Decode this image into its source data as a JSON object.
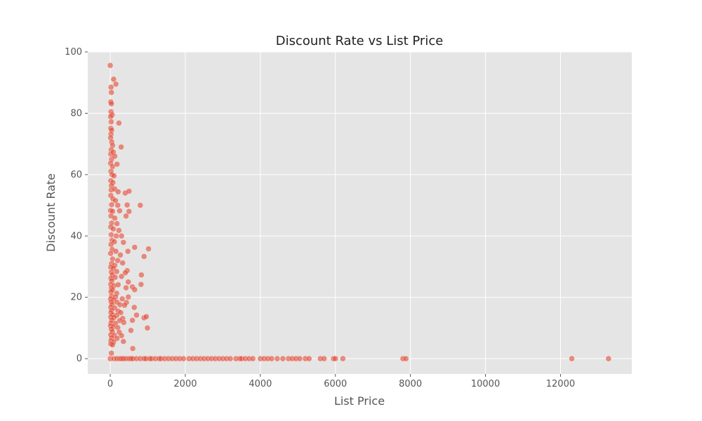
{
  "chart_data": {
    "type": "scatter",
    "title": "Discount Rate vs List Price",
    "xlabel": "List Price",
    "ylabel": "Discount Rate",
    "xlim": [
      -600,
      13900
    ],
    "ylim": [
      -5,
      100
    ],
    "xticks": [
      0,
      2000,
      4000,
      6000,
      8000,
      10000,
      12000
    ],
    "yticks": [
      0,
      20,
      40,
      60,
      80,
      100
    ],
    "grid": true,
    "colors": {
      "background": "#e5e5e5",
      "grid": "#ffffff",
      "point": "#e24a33",
      "point_edge": "#ffffff"
    },
    "series": [
      {
        "points": [
          [
            0,
            95.6
          ],
          [
            20,
            88.5
          ],
          [
            30,
            86.8
          ],
          [
            90,
            91.1
          ],
          [
            150,
            89.5
          ],
          [
            15,
            83.7
          ],
          [
            30,
            83.1
          ],
          [
            20,
            80.5
          ],
          [
            50,
            79.5
          ],
          [
            10,
            78.9
          ],
          [
            25,
            77.2
          ],
          [
            230,
            76.8
          ],
          [
            15,
            75.1
          ],
          [
            35,
            74.5
          ],
          [
            20,
            73.2
          ],
          [
            10,
            72.0
          ],
          [
            40,
            70.6
          ],
          [
            60,
            69.5
          ],
          [
            25,
            68.1
          ],
          [
            290,
            69.0
          ],
          [
            15,
            66.7
          ],
          [
            80,
            67.3
          ],
          [
            35,
            65.0
          ],
          [
            120,
            66.0
          ],
          [
            10,
            63.7
          ],
          [
            60,
            62.6
          ],
          [
            180,
            63.4
          ],
          [
            20,
            61.1
          ],
          [
            45,
            60.0
          ],
          [
            100,
            59.6
          ],
          [
            15,
            58.0
          ],
          [
            70,
            57.4
          ],
          [
            30,
            56.4
          ],
          [
            25,
            55.0
          ],
          [
            120,
            55.3
          ],
          [
            210,
            54.4
          ],
          [
            400,
            54.0
          ],
          [
            500,
            54.6
          ],
          [
            15,
            53.2
          ],
          [
            70,
            52.1
          ],
          [
            140,
            51.5
          ],
          [
            35,
            50.2
          ],
          [
            200,
            50.0
          ],
          [
            450,
            50.1
          ],
          [
            800,
            50.0
          ],
          [
            10,
            48.3
          ],
          [
            60,
            48.0
          ],
          [
            250,
            48.2
          ],
          [
            500,
            48.0
          ],
          [
            20,
            46.5
          ],
          [
            120,
            45.8
          ],
          [
            420,
            46.5
          ],
          [
            35,
            44.2
          ],
          [
            180,
            44.0
          ],
          [
            15,
            42.9
          ],
          [
            80,
            42.3
          ],
          [
            230,
            41.8
          ],
          [
            25,
            40.4
          ],
          [
            160,
            40.0
          ],
          [
            300,
            40.0
          ],
          [
            45,
            38.6
          ],
          [
            110,
            38.1
          ],
          [
            350,
            37.9
          ],
          [
            20,
            37.2
          ],
          [
            650,
            36.3
          ],
          [
            1020,
            35.8
          ],
          [
            50,
            35.6
          ],
          [
            150,
            35.0
          ],
          [
            470,
            35.0
          ],
          [
            10,
            34.3
          ],
          [
            270,
            33.8
          ],
          [
            900,
            33.3
          ],
          [
            60,
            32.5
          ],
          [
            200,
            32.0
          ],
          [
            35,
            31.0
          ],
          [
            120,
            30.4
          ],
          [
            330,
            31.2
          ],
          [
            15,
            29.8
          ],
          [
            80,
            29.5
          ],
          [
            450,
            28.7
          ],
          [
            30,
            28.2
          ],
          [
            170,
            28.4
          ],
          [
            400,
            28.0
          ],
          [
            55,
            27.3
          ],
          [
            830,
            27.3
          ],
          [
            20,
            26.2
          ],
          [
            130,
            26.5
          ],
          [
            300,
            26.8
          ],
          [
            40,
            25.4
          ],
          [
            480,
            25.0
          ],
          [
            15,
            24.2
          ],
          [
            100,
            23.8
          ],
          [
            210,
            24.1
          ],
          [
            590,
            23.4
          ],
          [
            820,
            24.2
          ],
          [
            30,
            23.0
          ],
          [
            420,
            23.1
          ],
          [
            60,
            22.5
          ],
          [
            650,
            22.5
          ],
          [
            20,
            21.8
          ],
          [
            170,
            21.3
          ],
          [
            35,
            20.4
          ],
          [
            140,
            20.1
          ],
          [
            480,
            20.1
          ],
          [
            10,
            19.5
          ],
          [
            90,
            19.2
          ],
          [
            320,
            19.5
          ],
          [
            25,
            18.5
          ],
          [
            180,
            18.4
          ],
          [
            430,
            18.3
          ],
          [
            50,
            17.7
          ],
          [
            260,
            17.6
          ],
          [
            380,
            17.4
          ],
          [
            15,
            16.8
          ],
          [
            120,
            16.5
          ],
          [
            640,
            16.7
          ],
          [
            35,
            15.8
          ],
          [
            210,
            15.5
          ],
          [
            20,
            15.0
          ],
          [
            280,
            15.0
          ],
          [
            60,
            14.3
          ],
          [
            170,
            14.1
          ],
          [
            700,
            14.2
          ],
          [
            15,
            13.6
          ],
          [
            100,
            13.4
          ],
          [
            330,
            13.1
          ],
          [
            900,
            13.3
          ],
          [
            960,
            13.7
          ],
          [
            40,
            12.6
          ],
          [
            250,
            12.4
          ],
          [
            590,
            12.5
          ],
          [
            20,
            11.6
          ],
          [
            140,
            11.5
          ],
          [
            360,
            11.8
          ],
          [
            10,
            10.7
          ],
          [
            80,
            10.4
          ],
          [
            200,
            10.1
          ],
          [
            990,
            10.0
          ],
          [
            30,
            9.6
          ],
          [
            550,
            9.2
          ],
          [
            55,
            8.8
          ],
          [
            240,
            8.6
          ],
          [
            15,
            7.8
          ],
          [
            110,
            7.6
          ],
          [
            300,
            7.5
          ],
          [
            35,
            6.8
          ],
          [
            180,
            6.6
          ],
          [
            20,
            5.8
          ],
          [
            90,
            5.5
          ],
          [
            350,
            5.6
          ],
          [
            15,
            4.8
          ],
          [
            60,
            4.5
          ],
          [
            600,
            3.3
          ],
          [
            30,
            1.8
          ],
          [
            0,
            0
          ],
          [
            100,
            0
          ],
          [
            180,
            0
          ],
          [
            250,
            0
          ],
          [
            300,
            0
          ],
          [
            350,
            0
          ],
          [
            420,
            0
          ],
          [
            500,
            0
          ],
          [
            550,
            0
          ],
          [
            600,
            0
          ],
          [
            700,
            0
          ],
          [
            800,
            0
          ],
          [
            900,
            0
          ],
          [
            950,
            0
          ],
          [
            1050,
            0
          ],
          [
            1100,
            0
          ],
          [
            1200,
            0
          ],
          [
            1300,
            0
          ],
          [
            1350,
            0
          ],
          [
            1450,
            0
          ],
          [
            1550,
            0
          ],
          [
            1650,
            0
          ],
          [
            1750,
            0
          ],
          [
            1850,
            0
          ],
          [
            1950,
            0
          ],
          [
            2100,
            0
          ],
          [
            2200,
            0
          ],
          [
            2300,
            0
          ],
          [
            2400,
            0
          ],
          [
            2500,
            0
          ],
          [
            2600,
            0
          ],
          [
            2700,
            0
          ],
          [
            2800,
            0
          ],
          [
            2900,
            0
          ],
          [
            3000,
            0
          ],
          [
            3100,
            0
          ],
          [
            3200,
            0
          ],
          [
            3350,
            0
          ],
          [
            3450,
            0
          ],
          [
            3500,
            0
          ],
          [
            3600,
            0
          ],
          [
            3700,
            0
          ],
          [
            3800,
            0
          ],
          [
            4000,
            0
          ],
          [
            4100,
            0
          ],
          [
            4200,
            0
          ],
          [
            4300,
            0
          ],
          [
            4450,
            0
          ],
          [
            4600,
            0
          ],
          [
            4750,
            0
          ],
          [
            4850,
            0
          ],
          [
            4950,
            0
          ],
          [
            5050,
            0
          ],
          [
            5200,
            0
          ],
          [
            5300,
            0
          ],
          [
            5600,
            0
          ],
          [
            5700,
            0
          ],
          [
            5950,
            0
          ],
          [
            6000,
            0
          ],
          [
            6200,
            0
          ],
          [
            7800,
            0
          ],
          [
            7880,
            0
          ],
          [
            12300,
            0
          ],
          [
            13280,
            0
          ]
        ]
      }
    ]
  }
}
